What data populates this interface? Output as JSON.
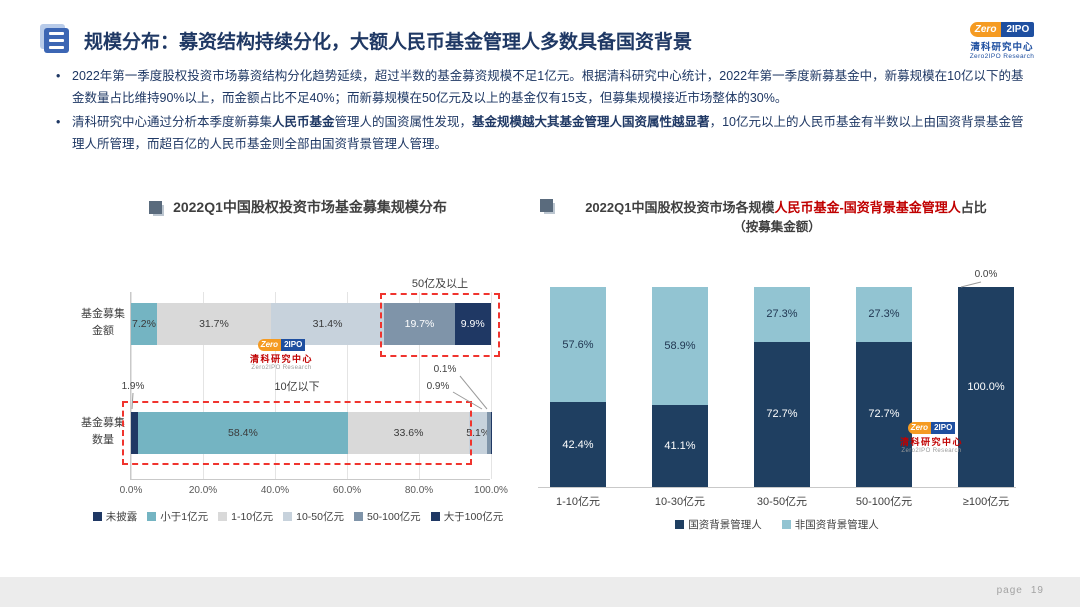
{
  "header": {
    "title": "规模分布：募资结构持续分化，大额人民币基金管理人多数具备国资背景"
  },
  "logo": {
    "zero": "Zero",
    "ipo": "2IPO",
    "cn": "清科研究中心",
    "en": "Zero2IPO Research"
  },
  "bullets": {
    "marker": "•",
    "b1": "2022年第一季度股权投资市场募资结构分化趋势延续，超过半数的基金募资规模不足1亿元。根据清科研究中心统计，2022年第一季度新募基金中，新募规模在10亿以下的基金数量占比维持90%以上，而金额占比不足40%；而新募规模在50亿元及以上的基金仅有15支，但募集规模接近市场整体的30%。",
    "b2_1": "清科研究中心通过分析本季度新募集",
    "b2_2": "人民币基金",
    "b2_3": "管理人的国资属性发现，",
    "b2_4": "基金规模越大其基金管理人国资属性越显著",
    "b2_5": "，10亿元以上的人民币基金有半数以上由国资背景基金管理人所管理，而超百亿的人民币基金则全部由国资背景管理人管理。"
  },
  "palette": {
    "未披露": {
      "bg": "#1f3864",
      "fg": "#ffffff"
    },
    "小于1亿元": {
      "bg": "#74b4c2",
      "fg": "#3a3a3a"
    },
    "1-10亿元": {
      "bg": "#d9d9d9",
      "fg": "#3a3a3a"
    },
    "10-50亿元": {
      "bg": "#c7d2dc",
      "fg": "#3a3a3a"
    },
    "50-100亿元": {
      "bg": "#7f94a9",
      "fg": "#ffffff"
    },
    "大于100亿元": {
      "bg": "#1f3864",
      "fg": "#ffffff"
    },
    "国资背景管理人": {
      "bg": "#1f3f61",
      "fg": "#ffffff"
    },
    "非国资背景管理人": {
      "bg": "#92c4d2",
      "fg": "#1f3550"
    }
  },
  "chart_data": [
    {
      "type": "bar",
      "orientation": "horizontal",
      "stacked": true,
      "title": "2022Q1中国股权投资市场基金募集规模分布",
      "x_ticks": [
        "0.0%",
        "20.0%",
        "40.0%",
        "60.0%",
        "80.0%",
        "100.0%"
      ],
      "xlim": [
        0,
        100
      ],
      "legend": [
        "未披露",
        "小于1亿元",
        "1-10亿元",
        "10-50亿元",
        "50-100亿元",
        "大于100亿元"
      ],
      "rows": [
        {
          "category": "基金募集金额",
          "segments": [
            [
              "小于1亿元",
              7.2
            ],
            [
              "1-10亿元",
              31.7
            ],
            [
              "10-50亿元",
              31.4
            ],
            [
              "50-100亿元",
              19.7
            ],
            [
              "大于100亿元",
              9.9
            ]
          ]
        },
        {
          "category": "基金募集数量",
          "segments": [
            [
              "未披露",
              1.9
            ],
            [
              "小于1亿元",
              58.4
            ],
            [
              "1-10亿元",
              33.6
            ],
            [
              "10-50亿元",
              5.1
            ],
            [
              "50-100亿元",
              0.9
            ],
            [
              "大于100亿元",
              0.1
            ]
          ]
        }
      ],
      "annotations": {
        "box_amount": "50亿及以上",
        "box_count": "10亿以下",
        "callout_undisclosed": "1.9%",
        "callout_50_100": "0.9%",
        "callout_over100": "0.1%"
      }
    },
    {
      "type": "bar",
      "orientation": "vertical",
      "stacked": true,
      "title": "2022Q1中国股权投资市场各规模人民币基金-国资背景基金管理人占比（按募集金额）",
      "title_parts": [
        "2022Q1中国股权投资市场各规模",
        "人民币基金-国资背景基金管理人",
        "占比"
      ],
      "subtitle": "（按募集金额）",
      "categories": [
        "1-10亿元",
        "10-30亿元",
        "30-50亿元",
        "50-100亿元",
        "≥100亿元"
      ],
      "series": [
        {
          "name": "国资背景管理人",
          "values": [
            42.4,
            41.1,
            72.7,
            72.7,
            100.0
          ]
        },
        {
          "name": "非国资背景管理人",
          "values": [
            57.6,
            58.9,
            27.3,
            27.3,
            0.0
          ]
        }
      ],
      "ylim": [
        0,
        100
      ],
      "annotations": {
        "zero_label": "0.0%"
      }
    }
  ],
  "footer": {
    "page_label": "page",
    "page_number": "19"
  }
}
